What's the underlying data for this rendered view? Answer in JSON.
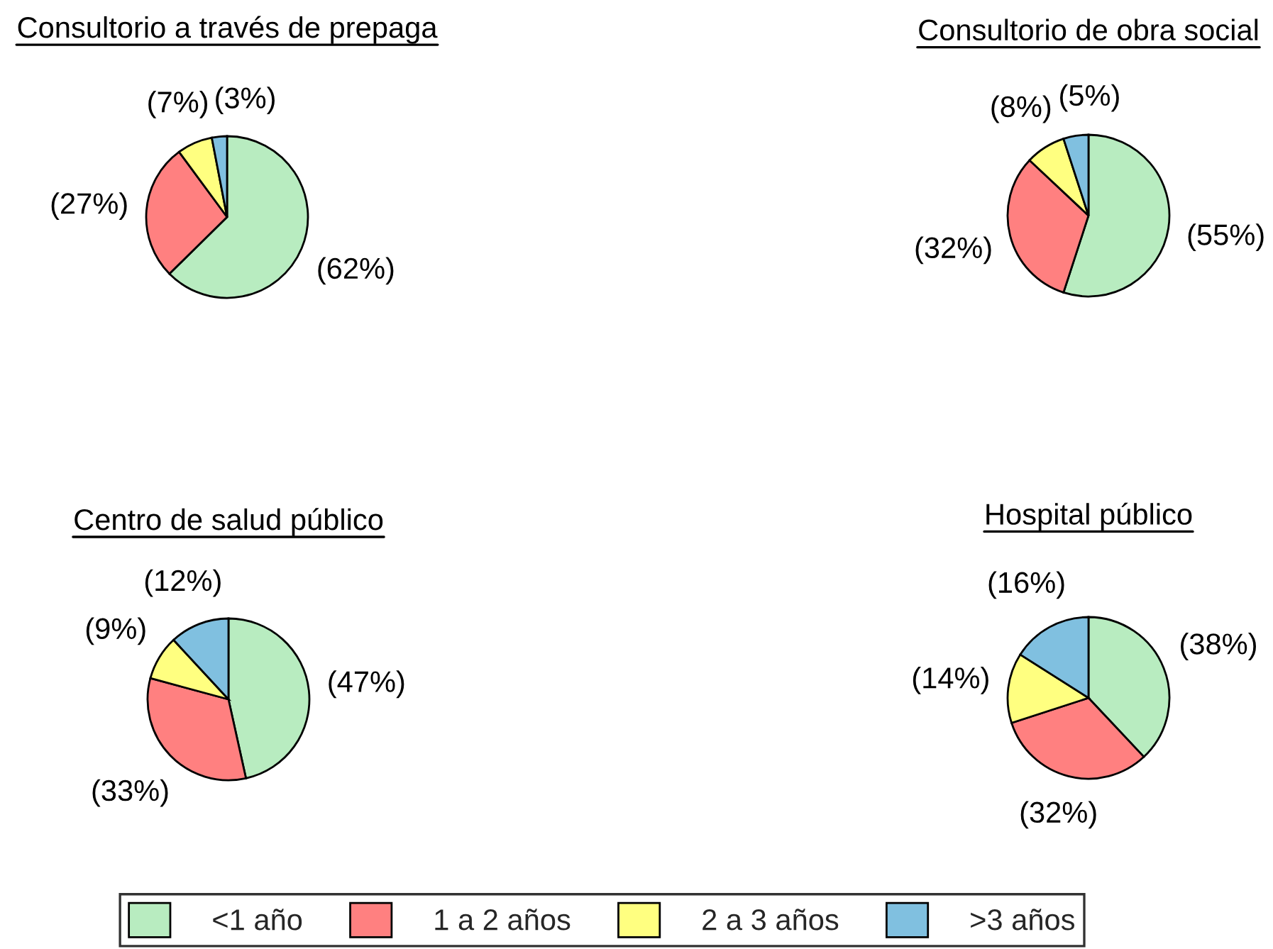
{
  "chart_data": [
    {
      "type": "pie",
      "title": "Consultorio a través de prepaga",
      "categories": [
        "<1 año",
        "1 a 2 años",
        "2 a 3 años",
        ">3 años"
      ],
      "values": [
        62,
        27,
        7,
        3
      ],
      "value_labels": [
        "(62%)",
        "(27%)",
        "(7%)",
        "(3%)"
      ],
      "colors": [
        "#b8ecc0",
        "#ff8080",
        "#ffff80",
        "#80c0e0"
      ],
      "legend": "bottom"
    },
    {
      "type": "pie",
      "title": "Consultorio de obra social",
      "values": [
        55,
        32,
        8,
        5
      ],
      "value_labels": [
        "(55%)",
        "(32%)",
        "(8%)",
        "(5%)"
      ],
      "colors": [
        "#b8ecc0",
        "#ff8080",
        "#ffff80",
        "#80c0e0"
      ]
    },
    {
      "type": "pie",
      "title": "Centro de salud público",
      "values": [
        47,
        33,
        9,
        12
      ],
      "value_labels": [
        "(47%)",
        "(33%)",
        "(9%)",
        "(12%)"
      ],
      "colors": [
        "#b8ecc0",
        "#ff8080",
        "#ffff80",
        "#80c0e0"
      ]
    },
    {
      "type": "pie",
      "title": "Hospital público",
      "values": [
        38,
        32,
        14,
        16
      ],
      "value_labels": [
        "(38%)",
        "(32%)",
        "(14%)",
        "(16%)"
      ],
      "colors": [
        "#b8ecc0",
        "#ff8080",
        "#ffff80",
        "#80c0e0"
      ]
    }
  ]
}
